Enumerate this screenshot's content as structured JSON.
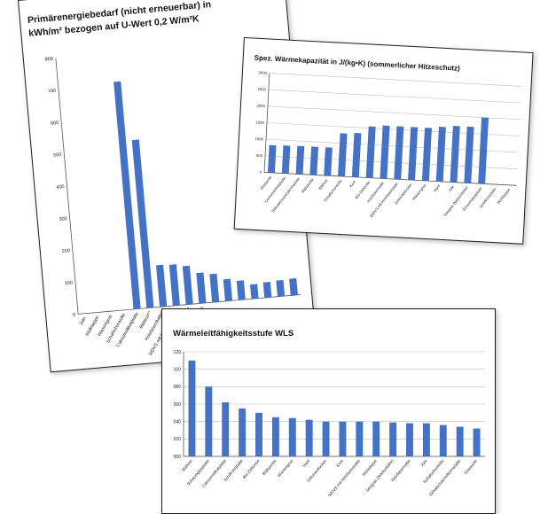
{
  "colors": {
    "bar": "#4472c4",
    "grid": "#bdbdbd",
    "card_border": "#1c1c1c"
  },
  "chart_data": [
    {
      "id": "primary",
      "type": "bar",
      "title_lines": [
        "Primärenergiebedarf (nicht erneuerbar) in",
        "kWh/m² bezogen auf U-Wert 0,2 W/m²K"
      ],
      "ylim": [
        0,
        800
      ],
      "yticks": [
        0,
        100,
        200,
        300,
        400,
        500,
        600,
        700,
        800
      ],
      "categories": [
        "Jute",
        "Wollsteppe",
        "Wiesengras",
        "Schafschurwolle",
        "Calciumsilikatplatte",
        "Blähton**",
        "Holzfasermatte**",
        "WDVS mit Holzfaserplatte",
        "Hanf",
        "Schaumglasplatte",
        "",
        "",
        "",
        "",
        "",
        "",
        ""
      ],
      "values": [
        0,
        0,
        0,
        0,
        710,
        525,
        130,
        128,
        120,
        95,
        88,
        68,
        60,
        45,
        48,
        50,
        52
      ],
      "xlabel": "",
      "ylabel": "",
      "grid": false
    },
    {
      "id": "heatcap",
      "type": "bar",
      "title": "Spez. Wärmekapazität in J/(kg•K) (sommerlicher Hitzeschutz)",
      "ylim": [
        0,
        3000
      ],
      "yticks": [
        0,
        500,
        1000,
        1500,
        2000,
        2500,
        3000
      ],
      "categories": [
        "Glaswolle",
        "Calciumsilikatplatte",
        "Silikatschaum/dämmplatte",
        "Blähperlite",
        "Blähton",
        "Schafschurwolle",
        "Kork",
        "Bio-Zellulose",
        "Holzfasermatte",
        "WDVS mit Holzfaserplatte",
        "Zellulosefocken",
        "Wiesengras",
        "Hanf",
        "Jute",
        "Seegras (Neptunbälle)",
        "Schaumglasplatte",
        "Schilfrohrplatte",
        "Wollsteppe"
      ],
      "values": [
        830,
        840,
        850,
        850,
        850,
        1300,
        1330,
        1550,
        1600,
        1600,
        1600,
        1600,
        1650,
        1700,
        1700,
        2000,
        0,
        0
      ],
      "xlabel": "",
      "ylabel": "",
      "grid": true
    },
    {
      "id": "wls",
      "type": "bar",
      "title": "Wärmeleitfähigkeitsstufe WLS",
      "ylim": [
        0,
        0.12
      ],
      "yticks": [
        0,
        0.02,
        0.04,
        0.06,
        0.08,
        0.1,
        0.12
      ],
      "ytick_labels": [
        "000",
        "020",
        "040",
        "060",
        "080",
        "100",
        "120"
      ],
      "categories": [
        "Blähton",
        "Schaumglasplatte",
        "Calciumsilikatplatte",
        "Schilfrohrplatte",
        "Bio-Zellulose",
        "Blähperlite",
        "Wiesengras",
        "Hanf",
        "Zellulosefocken",
        "Kork",
        "WDVS mit Holzfaserplatte",
        "Wollsteppe",
        "Seegras (Neptunbälle)",
        "Holzfasermatte",
        "Jute",
        "Schafschurwolle",
        "Silikatschaumdämmplatte",
        "Glaswolle"
      ],
      "values": [
        0.11,
        0.08,
        0.062,
        0.055,
        0.05,
        0.045,
        0.044,
        0.042,
        0.04,
        0.04,
        0.04,
        0.04,
        0.039,
        0.038,
        0.038,
        0.036,
        0.034,
        0.032
      ],
      "xlabel": "",
      "ylabel": "",
      "grid": true
    }
  ]
}
